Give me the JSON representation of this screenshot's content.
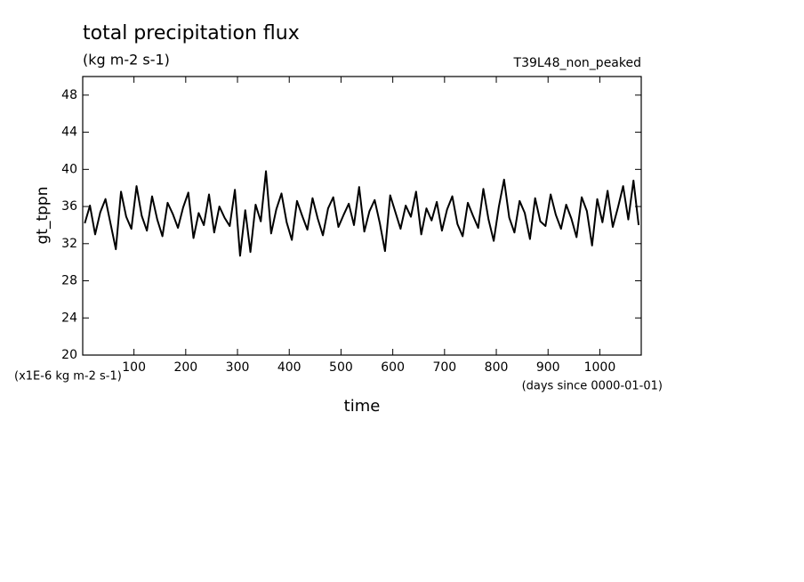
{
  "chart_data": {
    "type": "line",
    "title": "total precipitation flux",
    "subtitle": "(kg m-2 s-1)",
    "annotation": "T39L48_non_peaked",
    "ylabel": "gt_tppn",
    "xlabel": "time",
    "y_unit_label": "(x1E-6 kg m-2 s-1)",
    "x_unit_label": "(days since 0000-01-01)",
    "xlim": [
      1,
      1080
    ],
    "ylim": [
      20,
      50
    ],
    "xticks": [
      100,
      200,
      300,
      400,
      500,
      600,
      700,
      800,
      900,
      1000
    ],
    "yticks": [
      20,
      24,
      28,
      32,
      36,
      40,
      44,
      48
    ],
    "x": [
      5,
      15,
      25,
      35,
      45,
      55,
      65,
      75,
      85,
      95,
      105,
      115,
      125,
      135,
      145,
      155,
      165,
      175,
      185,
      195,
      205,
      215,
      225,
      235,
      245,
      255,
      265,
      275,
      285,
      295,
      305,
      315,
      325,
      335,
      345,
      355,
      365,
      375,
      385,
      395,
      405,
      415,
      425,
      435,
      445,
      455,
      465,
      475,
      485,
      495,
      505,
      515,
      525,
      535,
      545,
      555,
      565,
      575,
      585,
      595,
      605,
      615,
      625,
      635,
      645,
      655,
      665,
      675,
      685,
      695,
      705,
      715,
      725,
      735,
      745,
      755,
      765,
      775,
      785,
      795,
      805,
      815,
      825,
      835,
      845,
      855,
      865,
      875,
      885,
      895,
      905,
      915,
      925,
      935,
      945,
      955,
      965,
      975,
      985,
      995,
      1005,
      1015,
      1025,
      1035,
      1045,
      1055,
      1065,
      1075
    ],
    "series": [
      {
        "name": "gt_tppn",
        "color": "#000000",
        "values": [
          34.2,
          36.1,
          33.0,
          35.4,
          36.8,
          34.1,
          31.4,
          37.6,
          34.9,
          33.6,
          38.2,
          35.0,
          33.4,
          37.1,
          34.6,
          32.8,
          36.4,
          35.2,
          33.7,
          35.9,
          37.5,
          32.6,
          35.3,
          34.0,
          37.3,
          33.2,
          36.0,
          34.8,
          33.9,
          37.8,
          30.7,
          35.6,
          31.1,
          36.2,
          34.4,
          39.8,
          33.1,
          35.7,
          37.4,
          34.3,
          32.4,
          36.6,
          35.0,
          33.5,
          36.9,
          34.7,
          32.9,
          35.8,
          37.0,
          33.8,
          35.1,
          36.3,
          34.0,
          38.1,
          33.3,
          35.5,
          36.7,
          34.2,
          31.2,
          37.2,
          35.4,
          33.6,
          36.1,
          34.9,
          37.6,
          33.0,
          35.8,
          34.5,
          36.5,
          33.4,
          35.7,
          37.1,
          34.1,
          32.8,
          36.4,
          35.0,
          33.7,
          37.9,
          34.6,
          32.3,
          36.0,
          38.9,
          34.8,
          33.2,
          36.6,
          35.3,
          32.5,
          36.9,
          34.4,
          33.9,
          37.3,
          35.1,
          33.6,
          36.2,
          34.7,
          32.7,
          37.0,
          35.5,
          31.8,
          36.8,
          34.3,
          37.7,
          33.8,
          35.9,
          38.2,
          34.6,
          38.8,
          34.0
        ]
      }
    ]
  }
}
